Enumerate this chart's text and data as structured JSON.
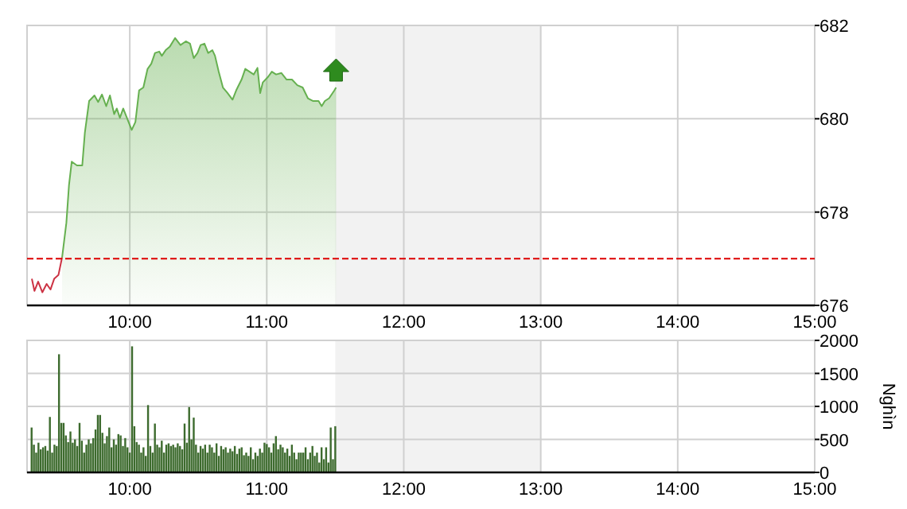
{
  "chart_data": [
    {
      "type": "area",
      "xlim": [
        9.25,
        15
      ],
      "xticks": [
        {
          "value": 10,
          "label": "10:00"
        },
        {
          "value": 11,
          "label": "11:00"
        },
        {
          "value": 12,
          "label": "12:00"
        },
        {
          "value": 13,
          "label": "13:00"
        },
        {
          "value": 14,
          "label": "14:00"
        },
        {
          "value": 15,
          "label": "15:00"
        }
      ],
      "ylim": [
        676,
        682
      ],
      "yticks": [
        676,
        678,
        680,
        682
      ],
      "grid": true,
      "ref_lines": [
        {
          "axis": "y",
          "value": 677.0,
          "color": "#dd0000",
          "line_style": "dashed"
        }
      ],
      "bands": [
        {
          "axis": "x",
          "from": 11.5,
          "to": 13,
          "color": "#f2f2f2"
        }
      ],
      "series": [
        {
          "type": "line",
          "color": "#cc3344",
          "x": [
            9.285,
            9.304,
            9.331,
            9.362,
            9.393,
            9.421,
            9.448,
            9.479,
            9.506
          ],
          "values": [
            676.57,
            676.31,
            676.51,
            676.28,
            676.46,
            676.34,
            676.57,
            676.65,
            677.03
          ]
        },
        {
          "color": "#66b050",
          "x": [
            9.506,
            9.537,
            9.556,
            9.576,
            9.614,
            9.653,
            9.672,
            9.703,
            9.742,
            9.769,
            9.797,
            9.828,
            9.855,
            9.886,
            9.905,
            9.928,
            9.952,
            9.983,
            10.014,
            10.041,
            10.068,
            10.099,
            10.13,
            10.157,
            10.184,
            10.215,
            10.234,
            10.262,
            10.293,
            10.331,
            10.37,
            10.409,
            10.44,
            10.467,
            10.494,
            10.517,
            10.545,
            10.572,
            10.603,
            10.622,
            10.649,
            10.68,
            10.711,
            10.75,
            10.777,
            10.816,
            10.843,
            10.874,
            10.905,
            10.932,
            10.952,
            10.971,
            11.01,
            11.037,
            11.068,
            11.107,
            11.145,
            11.184,
            11.223,
            11.262,
            11.3,
            11.339,
            11.378,
            11.401,
            11.424,
            11.455,
            11.494,
            11.506
          ],
          "values": [
            677.03,
            677.77,
            678.57,
            679.08,
            679.0,
            679.0,
            679.7,
            680.38,
            680.5,
            680.36,
            680.52,
            680.27,
            680.5,
            680.1,
            680.22,
            680.02,
            680.22,
            679.99,
            679.76,
            679.93,
            680.61,
            680.67,
            681.07,
            681.18,
            681.41,
            681.44,
            681.35,
            681.47,
            681.55,
            681.73,
            681.58,
            681.66,
            681.61,
            681.3,
            681.41,
            681.58,
            681.61,
            681.41,
            681.47,
            681.35,
            681.01,
            680.67,
            680.56,
            680.41,
            680.61,
            680.84,
            681.07,
            681.01,
            680.95,
            681.09,
            680.55,
            680.78,
            680.9,
            681.01,
            680.95,
            680.98,
            680.84,
            680.84,
            680.72,
            680.67,
            680.44,
            680.38,
            680.38,
            680.27,
            680.38,
            680.44,
            680.61,
            680.67
          ]
        }
      ]
    },
    {
      "type": "bar",
      "color": "#3d6b2e",
      "ylabel": "Nghìn",
      "xlim": [
        9.25,
        15
      ],
      "xticks": [
        {
          "value": 10,
          "label": "10:00"
        },
        {
          "value": 11,
          "label": "11:00"
        },
        {
          "value": 12,
          "label": "12:00"
        },
        {
          "value": 13,
          "label": "13:00"
        },
        {
          "value": 14,
          "label": "14:00"
        },
        {
          "value": 15,
          "label": "15:00"
        }
      ],
      "ylim": [
        0,
        2000
      ],
      "yticks": [
        0,
        500,
        1000,
        1500,
        2000
      ],
      "grid": true,
      "bands": [
        {
          "axis": "x",
          "from": 11.5,
          "to": 13,
          "color": "#f2f2f2"
        }
      ],
      "x": [
        9.2833,
        9.3,
        9.3167,
        9.3333,
        9.35,
        9.3667,
        9.3833,
        9.4,
        9.4167,
        9.4333,
        9.45,
        9.4667,
        9.4833,
        9.5,
        9.5167,
        9.5333,
        9.55,
        9.5667,
        9.5833,
        9.6,
        9.6167,
        9.6333,
        9.65,
        9.6667,
        9.6833,
        9.7,
        9.7167,
        9.7333,
        9.75,
        9.7667,
        9.7833,
        9.8,
        9.8167,
        9.8333,
        9.85,
        9.8667,
        9.8833,
        9.9,
        9.9167,
        9.9333,
        9.95,
        9.9667,
        9.9833,
        10,
        10.0167,
        10.0333,
        10.05,
        10.0667,
        10.0833,
        10.1,
        10.1167,
        10.1333,
        10.15,
        10.1667,
        10.1833,
        10.2,
        10.2167,
        10.2333,
        10.25,
        10.2667,
        10.2833,
        10.3,
        10.3167,
        10.3333,
        10.35,
        10.3667,
        10.3833,
        10.4,
        10.4167,
        10.4333,
        10.45,
        10.4667,
        10.4833,
        10.5,
        10.5167,
        10.5333,
        10.55,
        10.5667,
        10.5833,
        10.6,
        10.6167,
        10.6333,
        10.65,
        10.6667,
        10.6833,
        10.7,
        10.7167,
        10.7333,
        10.75,
        10.7667,
        10.7833,
        10.8,
        10.8167,
        10.8333,
        10.85,
        10.8667,
        10.8833,
        10.9,
        10.9167,
        10.9333,
        10.95,
        10.9667,
        10.9833,
        11,
        11.0167,
        11.0333,
        11.05,
        11.0667,
        11.0833,
        11.1,
        11.1167,
        11.1333,
        11.15,
        11.1667,
        11.1833,
        11.2,
        11.2167,
        11.2333,
        11.25,
        11.2667,
        11.2833,
        11.3,
        11.3167,
        11.3333,
        11.35,
        11.3667,
        11.3833,
        11.4,
        11.4167,
        11.4333,
        11.45,
        11.4667,
        11.4833,
        11.5
      ],
      "values": [
        680,
        420,
        300,
        450,
        350,
        380,
        400,
        330,
        840,
        300,
        420,
        400,
        1790,
        750,
        750,
        560,
        460,
        620,
        450,
        500,
        400,
        750,
        480,
        300,
        420,
        500,
        440,
        520,
        650,
        870,
        870,
        600,
        440,
        550,
        680,
        380,
        500,
        420,
        580,
        560,
        400,
        520,
        380,
        300,
        1910,
        700,
        460,
        420,
        300,
        380,
        250,
        1020,
        400,
        300,
        740,
        420,
        380,
        480,
        300,
        420,
        440,
        400,
        420,
        380,
        440,
        400,
        350,
        740,
        450,
        990,
        500,
        830,
        420,
        300,
        400,
        360,
        420,
        300,
        420,
        380,
        300,
        440,
        250,
        400,
        350,
        380,
        300,
        360,
        320,
        400,
        280,
        360,
        380,
        260,
        300,
        250,
        380,
        200,
        300,
        250,
        360,
        300,
        450,
        430,
        380,
        300,
        440,
        550,
        350,
        420,
        380,
        300,
        360,
        250,
        420,
        300,
        200,
        300,
        300,
        300,
        380,
        200,
        300,
        400,
        250,
        300,
        150,
        380,
        200,
        380,
        150,
        680,
        200,
        700
      ]
    }
  ]
}
